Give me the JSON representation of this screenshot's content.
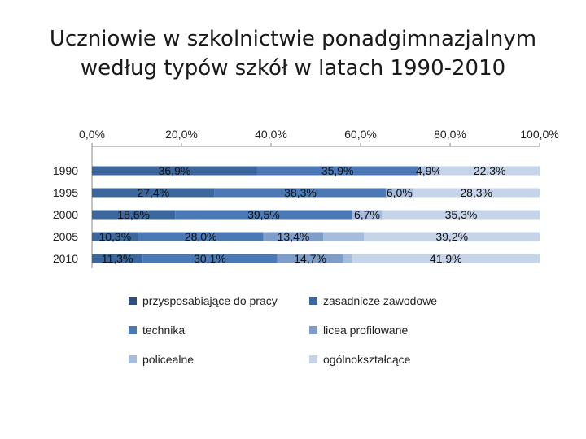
{
  "title_lines": [
    "Uczniowie w szkolnictwie ponadgimnazjalnym",
    "według typów szkół w latach 1990-2010"
  ],
  "chart_data": {
    "type": "bar",
    "orientation": "horizontal",
    "stacked": "percent",
    "categories": [
      "1990",
      "1995",
      "2000",
      "2005",
      "2010"
    ],
    "x_ticks": [
      "0,0%",
      "20,0%",
      "40,0%",
      "60,0%",
      "80,0%",
      "100,0%"
    ],
    "xlim": [
      0,
      100
    ],
    "x_axis_position": "top",
    "grid": false,
    "legend_position": "bottom",
    "series": [
      {
        "name": "przysposabiające do pracy",
        "color": "#2e4f7f",
        "values": [
          0,
          0,
          0,
          0,
          0
        ],
        "labels": [
          "",
          "",
          "",
          "",
          ""
        ]
      },
      {
        "name": "zasadnicze zawodowe",
        "color": "#3c679c",
        "values": [
          36.9,
          27.4,
          18.6,
          10.3,
          11.3
        ],
        "labels": [
          "36,9%",
          "27,4%",
          "18,6%",
          "10,3%",
          "11,3%"
        ]
      },
      {
        "name": "technika",
        "color": "#4a79b5",
        "values": [
          35.9,
          38.3,
          39.5,
          28.0,
          30.1
        ],
        "labels": [
          "35,9%",
          "38,3%",
          "39,5%",
          "28,0%",
          "30,1%"
        ]
      },
      {
        "name": "licea profilowane",
        "color": "#7f9dc9",
        "values": [
          0,
          0,
          0,
          13.4,
          14.7
        ],
        "labels": [
          "",
          "",
          "",
          "13,4%",
          "14,7%"
        ]
      },
      {
        "name": "policealne",
        "color": "#a6bcdc",
        "values": [
          4.9,
          6.0,
          6.7,
          9.1,
          2.0
        ],
        "labels": [
          "4,9%",
          "6,0%",
          "6,7%",
          "",
          ""
        ]
      },
      {
        "name": "ogólnokształcące",
        "color": "#c6d4ea",
        "values": [
          22.3,
          28.3,
          35.3,
          39.2,
          41.9
        ],
        "labels": [
          "22,3%",
          "28,3%",
          "35,3%",
          "39,2%",
          "41,9%"
        ]
      }
    ]
  }
}
